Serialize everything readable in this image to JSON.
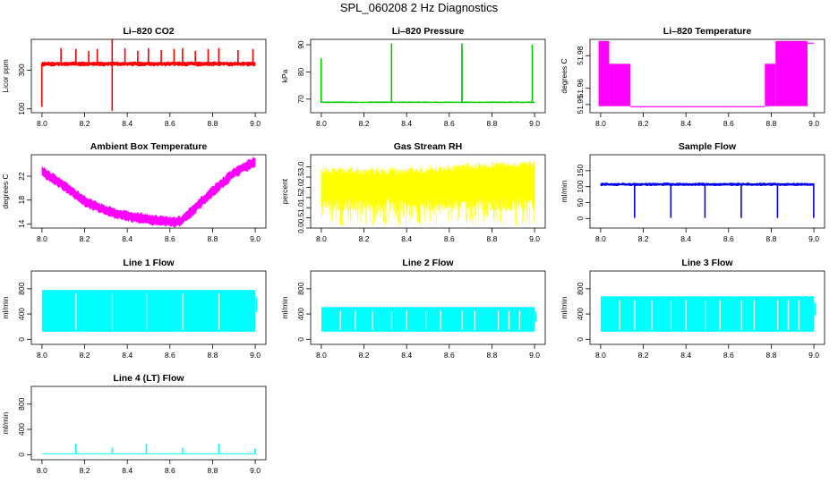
{
  "figure": {
    "title": "SPL_060208  2 Hz Diagnostics"
  },
  "chart_data": [
    {
      "type": "line",
      "title": "Li–820 CO2",
      "ylabel": "Licor ppm",
      "color": "#ff0000",
      "xlim": [
        7.95,
        9.05
      ],
      "ylim": [
        80,
        460
      ],
      "xticks": [
        8.0,
        8.2,
        8.4,
        8.6,
        8.8,
        9.0
      ],
      "xtick_labels": [
        "8.0",
        "8.2",
        "8.4",
        "8.6",
        "8.8",
        "9.0"
      ],
      "yticks": [
        100,
        300
      ],
      "ytick_labels": [
        "100",
        "300"
      ],
      "series": [
        {
          "name": "CO2",
          "style": "band",
          "base": 335,
          "low": 320,
          "high": 345,
          "spikes": [
            [
              8.0,
              110
            ],
            [
              8.09,
              415
            ],
            [
              8.16,
              410
            ],
            [
              8.22,
              400
            ],
            [
              8.26,
              410
            ],
            [
              8.33,
              460
            ],
            [
              8.33,
              90
            ],
            [
              8.39,
              415
            ],
            [
              8.45,
              400
            ],
            [
              8.5,
              415
            ],
            [
              8.56,
              405
            ],
            [
              8.62,
              410
            ],
            [
              8.66,
              415
            ],
            [
              8.72,
              400
            ],
            [
              8.78,
              410
            ],
            [
              8.83,
              415
            ],
            [
              8.92,
              405
            ],
            [
              8.99,
              410
            ]
          ]
        }
      ]
    },
    {
      "type": "line",
      "title": "Li–820 Pressure",
      "ylabel": "kPa",
      "color": "#00cc00",
      "xlim": [
        7.95,
        9.05
      ],
      "ylim": [
        65,
        92
      ],
      "xticks": [
        8.0,
        8.2,
        8.4,
        8.6,
        8.8,
        9.0
      ],
      "xtick_labels": [
        "8.0",
        "8.2",
        "8.4",
        "8.6",
        "8.8",
        "9.0"
      ],
      "yticks": [
        70,
        80,
        90
      ],
      "ytick_labels": [
        "70",
        "80",
        "90"
      ],
      "series": [
        {
          "name": "Pressure",
          "style": "band",
          "base": 68.8,
          "low": 68.6,
          "high": 69.1,
          "spikes": [
            [
              8.0,
              85
            ],
            [
              8.33,
              90.5
            ],
            [
              8.66,
              90.5
            ],
            [
              8.66,
              89
            ],
            [
              8.99,
              90
            ]
          ]
        }
      ]
    },
    {
      "type": "line",
      "title": "Li–820 Temperature",
      "ylabel": "degrees C",
      "color": "#ff00ff",
      "xlim": [
        7.95,
        9.05
      ],
      "ylim": [
        51.945,
        51.99
      ],
      "xticks": [
        8.0,
        8.2,
        8.4,
        8.6,
        8.8,
        9.0
      ],
      "xtick_labels": [
        "8.0",
        "8.2",
        "8.4",
        "8.6",
        "8.8",
        "9.0"
      ],
      "yticks": [
        51.95,
        51.96,
        51.98
      ],
      "ytick_labels": [
        "51.95",
        "51.96",
        "51.98"
      ],
      "series": [
        {
          "name": "Temperature",
          "style": "step_band",
          "segments": [
            [
              7.99,
              8.04,
              51.949,
              51.989
            ],
            [
              8.04,
              8.14,
              51.949,
              51.975
            ],
            [
              8.14,
              8.77,
              51.949,
              51.949
            ],
            [
              8.77,
              8.82,
              51.949,
              51.975
            ],
            [
              8.82,
              8.97,
              51.949,
              51.989
            ],
            [
              8.97,
              9.0,
              51.988,
              51.988
            ]
          ]
        }
      ]
    },
    {
      "type": "line",
      "title": "Ambient Box Temperature",
      "ylabel": "degrees C",
      "color": "#ff00ff",
      "xlim": [
        7.95,
        9.05
      ],
      "ylim": [
        13.3,
        25.6
      ],
      "xticks": [
        8.0,
        8.2,
        8.4,
        8.6,
        8.8,
        9.0
      ],
      "xtick_labels": [
        "8.0",
        "8.2",
        "8.4",
        "8.6",
        "8.8",
        "9.0"
      ],
      "yticks": [
        14,
        18,
        22
      ],
      "ytick_labels": [
        "14",
        "18",
        "22"
      ],
      "series": [
        {
          "name": "Box temperature",
          "style": "noisy_curve",
          "noise": 0.8,
          "x": [
            8.0,
            8.1,
            8.2,
            8.3,
            8.4,
            8.5,
            8.6,
            8.65,
            8.7,
            8.8,
            8.9,
            9.0
          ],
          "y": [
            22.8,
            20.5,
            17.8,
            16.2,
            15.3,
            14.8,
            14.3,
            14.4,
            16.0,
            19.5,
            22.5,
            24.5
          ]
        }
      ]
    },
    {
      "type": "line",
      "title": "Gas Stream RH",
      "ylabel": "percent",
      "color": "#ffff00",
      "xlim": [
        7.95,
        9.05
      ],
      "ylim": [
        0,
        3.6
      ],
      "xticks": [
        8.0,
        8.2,
        8.4,
        8.6,
        8.8,
        9.0
      ],
      "xtick_labels": [
        "8.0",
        "8.2",
        "8.4",
        "8.6",
        "8.8",
        "9.0"
      ],
      "yticks": [
        0.0,
        0.5,
        1.0,
        1.5,
        2.0,
        2.5,
        3.0
      ],
      "ytick_labels": [
        "0.0",
        "0.5",
        "1.0",
        "1.5",
        "2.0",
        "2.5",
        "3.0"
      ],
      "series": [
        {
          "name": "RH",
          "style": "noise_band",
          "low": 0.8,
          "high": 3.0,
          "min": 0.1,
          "max": 3.3,
          "x": [
            8.0,
            8.3,
            8.5,
            8.7,
            9.0
          ],
          "high_curve": [
            3.0,
            2.95,
            3.0,
            3.2,
            3.3
          ]
        }
      ]
    },
    {
      "type": "line",
      "title": "Sample Flow",
      "ylabel": "ml/min",
      "color": "#0000ee",
      "xlim": [
        7.95,
        9.05
      ],
      "ylim": [
        -30,
        200
      ],
      "xticks": [
        8.0,
        8.2,
        8.4,
        8.6,
        8.8,
        9.0
      ],
      "xtick_labels": [
        "8.0",
        "8.2",
        "8.4",
        "8.6",
        "8.8",
        "9.0"
      ],
      "yticks": [
        0,
        50,
        100,
        150
      ],
      "ytick_labels": [
        "0",
        "50",
        "100",
        "150"
      ],
      "series": [
        {
          "name": "Sample flow",
          "style": "band",
          "base": 107,
          "low": 102,
          "high": 112,
          "spikes": [
            [
              8.16,
              2
            ],
            [
              8.33,
              2
            ],
            [
              8.49,
              2
            ],
            [
              8.66,
              2
            ],
            [
              8.83,
              2
            ],
            [
              9.0,
              2
            ]
          ]
        }
      ]
    },
    {
      "type": "line",
      "title": "Line 1 Flow",
      "ylabel": "ml/min",
      "color": "#00ffff",
      "xlim": [
        7.95,
        9.05
      ],
      "ylim": [
        -80,
        1080
      ],
      "xticks": [
        8.0,
        8.2,
        8.4,
        8.6,
        8.8,
        9.0
      ],
      "xtick_labels": [
        "8.0",
        "8.2",
        "8.4",
        "8.6",
        "8.8",
        "9.0"
      ],
      "yticks": [
        0,
        400,
        800
      ],
      "ytick_labels": [
        "0",
        "400",
        "800"
      ],
      "series": [
        {
          "name": "Line 1",
          "style": "block",
          "low": 120,
          "high": 780,
          "gaps": [
            8.16,
            8.33,
            8.49,
            8.66,
            8.83
          ]
        }
      ]
    },
    {
      "type": "line",
      "title": "Line 2 Flow",
      "ylabel": "ml/min",
      "color": "#00ffff",
      "xlim": [
        7.95,
        9.05
      ],
      "ylim": [
        -80,
        1080
      ],
      "xticks": [
        8.0,
        8.2,
        8.4,
        8.6,
        8.8,
        9.0
      ],
      "xtick_labels": [
        "8.0",
        "8.2",
        "8.4",
        "8.6",
        "8.8",
        "9.0"
      ],
      "yticks": [
        0,
        400,
        800
      ],
      "ytick_labels": [
        "0",
        "400",
        "800"
      ],
      "series": [
        {
          "name": "Line 2",
          "style": "block",
          "low": 120,
          "high": 510,
          "gaps": [
            8.16,
            8.33,
            8.49,
            8.66,
            8.83,
            8.09,
            8.24,
            8.4,
            8.56,
            8.72,
            8.88,
            8.93
          ]
        }
      ]
    },
    {
      "type": "line",
      "title": "Line 3 Flow",
      "ylabel": "ml/min",
      "color": "#00ffff",
      "xlim": [
        7.95,
        9.05
      ],
      "ylim": [
        -80,
        1080
      ],
      "xticks": [
        8.0,
        8.2,
        8.4,
        8.6,
        8.8,
        9.0
      ],
      "xtick_labels": [
        "8.0",
        "8.2",
        "8.4",
        "8.6",
        "8.8",
        "9.0"
      ],
      "yticks": [
        0,
        400,
        800
      ],
      "ytick_labels": [
        "0",
        "400",
        "800"
      ],
      "series": [
        {
          "name": "Line 3",
          "style": "block",
          "low": 120,
          "high": 680,
          "gaps": [
            8.16,
            8.33,
            8.49,
            8.66,
            8.83,
            8.09,
            8.24,
            8.4,
            8.56,
            8.72,
            8.88,
            8.93
          ]
        }
      ]
    },
    {
      "type": "line",
      "title": "Line 4 (LT) Flow",
      "ylabel": "ml/min",
      "color": "#00ffff",
      "xlim": [
        7.95,
        9.05
      ],
      "ylim": [
        -80,
        1080
      ],
      "xticks": [
        8.0,
        8.2,
        8.4,
        8.6,
        8.8,
        9.0
      ],
      "xtick_labels": [
        "8.0",
        "8.2",
        "8.4",
        "8.6",
        "8.8",
        "9.0"
      ],
      "yticks": [
        0,
        400,
        800
      ],
      "ytick_labels": [
        "0",
        "400",
        "800"
      ],
      "series": [
        {
          "name": "Line 4",
          "style": "band",
          "base": 15,
          "low": 10,
          "high": 20,
          "spikes": [
            [
              8.16,
              170
            ],
            [
              8.33,
              110
            ],
            [
              8.49,
              170
            ],
            [
              8.66,
              110
            ],
            [
              8.83,
              170
            ],
            [
              9.0,
              100
            ]
          ]
        }
      ]
    }
  ]
}
